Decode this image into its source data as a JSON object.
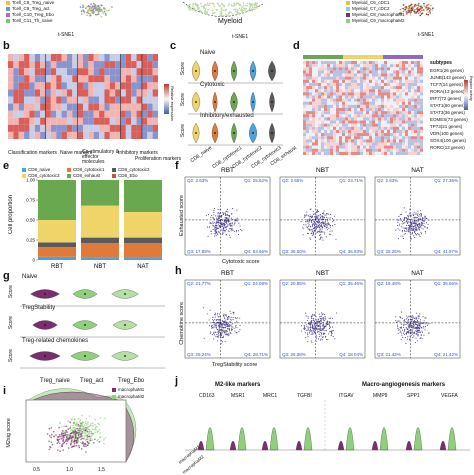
{
  "top_row": {
    "left_legend": [
      "Tcell_C8_Treg_naive",
      "Tcell_C9_Treg_act",
      "Tcell_C10_Treg_Ebo",
      "Tcell_C11_Th_naive"
    ],
    "left_axis": "t-SNE1",
    "mid_label": "Myeloid",
    "mid_axis": "t-SNE1",
    "right_legend": [
      "Myeloid_C6_cDC1",
      "Myeloid_C7_cDC2",
      "Myeloid_C8_macrophaM1",
      "Myeloid_C9_macrophaM2"
    ],
    "right_axis": "t-SNE1"
  },
  "panel_letters": {
    "b": "b",
    "c": "c",
    "d": "d",
    "e": "e",
    "f": "f",
    "g": "g",
    "h": "h",
    "i": "i",
    "j": "j"
  },
  "panel_b": {
    "groups": [
      "Classification markers",
      "Naive markers",
      "Co-stimulatory & effector molecules",
      "Inhibitory markers",
      "Proliferation markers"
    ],
    "legend_label": "Relative expression"
  },
  "panel_c": {
    "titles": [
      "Naive",
      "Cytotoxic",
      "Inhibitory/exhausted"
    ],
    "ylabel": "Score",
    "xticks": [
      "CD8_naive",
      "CD8_cytotoxic1",
      "CD8_cytotoxic2",
      "CD8_cytotoxic3",
      "CD8_exhaust"
    ]
  },
  "panel_d": {
    "title": "subtypes",
    "genes": [
      "EGR1(26 genes)",
      "JUNB(143 genes)",
      "TCF7(14 genes)",
      "RORA(13 genes)",
      "IRF7(72 genes)",
      "STAT1(60 genes)",
      "STAT3(36 genes)",
      "EOMES(73 genes)",
      "TP73(21 genes)",
      "VDR(100 genes)",
      "SOX4(100 genes)",
      "RORC(12 genes)"
    ],
    "legend_label": "Regulon activity"
  },
  "panel_e": {
    "legend": [
      "CD8_naive",
      "CD8_cytotoxic1",
      "CD8_cytotoxic2",
      "CD8_cytotoxic3",
      "CD8_exhaust",
      "CD8_Ebo"
    ],
    "ylabel": "Cell proportion",
    "yticks": [
      "0",
      "0.25",
      "0.50",
      "0.75",
      "1.00"
    ],
    "categories": [
      "RBT",
      "NBT",
      "NAT"
    ],
    "colors": [
      "#4aa3d9",
      "#e07a3a",
      "#5a5a5a",
      "#efd46a",
      "#6aa84f",
      "#c9534b"
    ]
  },
  "panel_f": {
    "titles": [
      "RBT",
      "NBT",
      "NAT"
    ],
    "ylabel": "Exhausted score",
    "xlabel": "Cytotoxic score",
    "quads": [
      [
        "Q2: 2.63%",
        "Q1: 25.62%",
        "Q3: 17.89%",
        "Q4: 53.66%"
      ],
      [
        "Q2: 2.66%",
        "Q1: 23.71%",
        "Q3: 36.50%",
        "Q4: 36.93%"
      ],
      [
        "Q2: 2.63%",
        "Q1: 27.36%",
        "Q3: 25.25%",
        "Q4: 41.97%"
      ]
    ]
  },
  "panel_g": {
    "titles": [
      "Naive",
      "TregStability",
      "Treg-related chemokines"
    ],
    "ylabel": "Score",
    "xticks": [
      "Treg_naive",
      "Treg_act",
      "Treg_Ebo"
    ]
  },
  "panel_h": {
    "titles": [
      "RBT",
      "NBT",
      "NAT"
    ],
    "ylabel": "Chemokine score",
    "xlabel": "TregStability score",
    "quads": [
      [
        "Q2: 21.77%",
        "Q1: 24.08%",
        "Q3: 25.24%",
        "Q4: 28.71%"
      ],
      [
        "Q2: 20.85%",
        "Q1: 35.46%",
        "Q3: 26.08%",
        "Q4: 18.04%"
      ],
      [
        "Q2: 18.48%",
        "Q1: 35.66%",
        "Q3: 21.42%",
        "Q4: 21.42%"
      ]
    ]
  },
  "panel_i": {
    "legend": [
      "macrophaM1",
      "macrophaM2"
    ],
    "ylabel": "M2sig score",
    "xticks": [
      "0.5",
      "1.0",
      "1.5"
    ],
    "colors": [
      "#7b2d6e",
      "#8fd17a"
    ]
  },
  "panel_j": {
    "group1": "M2-like markers",
    "group2": "Macro-angiogenesis markers",
    "genes": [
      "CD163",
      "MSR1",
      "MRC1",
      "TGFBI",
      "ITGAV",
      "MMP9",
      "SPP1",
      "VEGFA"
    ],
    "xticks": [
      "macrophaM1",
      "macrophaM2"
    ]
  }
}
